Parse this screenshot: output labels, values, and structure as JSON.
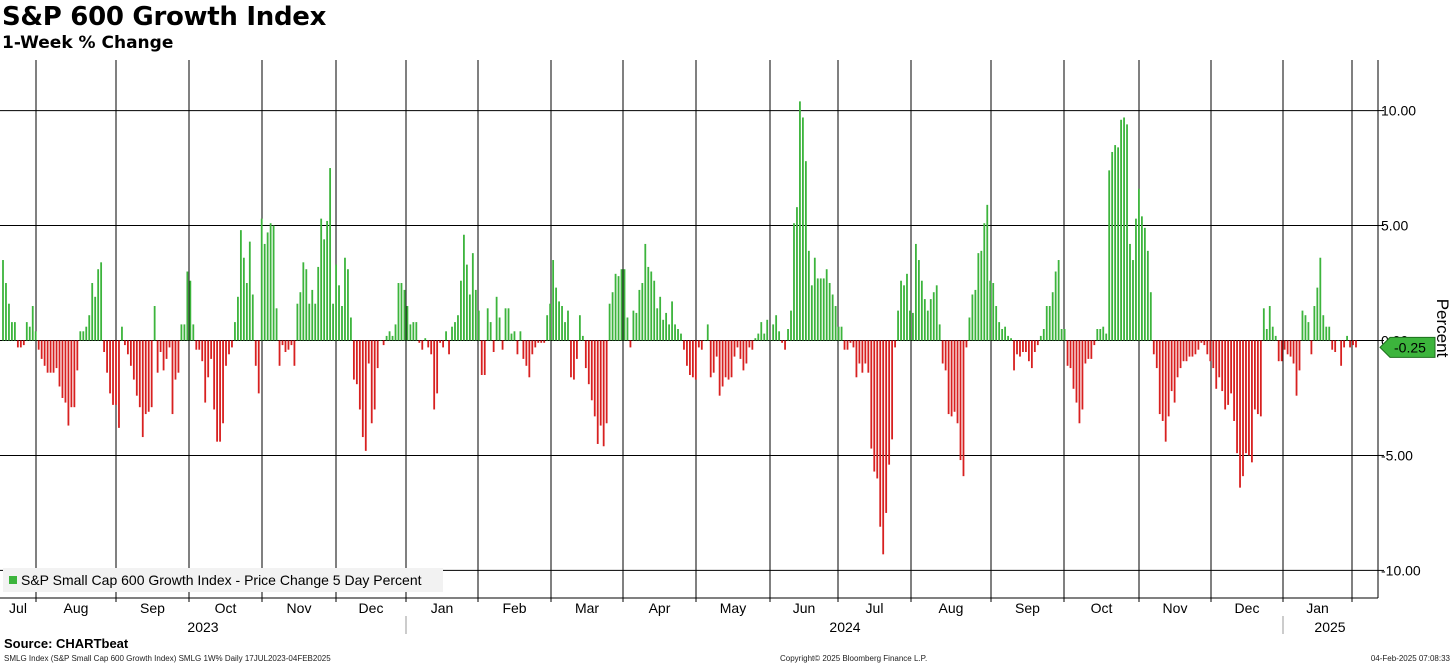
{
  "chart_data": {
    "type": "bar",
    "title": "S&P 600 Growth Index",
    "subtitle": "1-Week % Change",
    "ylabel": "Percent",
    "ylim": [
      -11.2,
      12.2
    ],
    "yticks": [
      10,
      5,
      0,
      -5,
      -10
    ],
    "ytick_labels": [
      "10.00",
      "5.00",
      "0.00",
      "-5.00",
      "-10.00"
    ],
    "last_value_label": "-0.25",
    "positive_color": "#3cb43c",
    "negative_color": "#d82020",
    "legend": "S&P Small Cap 600 Growth Index - Price Change 5 Day Percent",
    "x_month_labels": [
      "Jul",
      "Aug",
      "Sep",
      "Oct",
      "Nov",
      "Dec",
      "Jan",
      "Feb",
      "Mar",
      "Apr",
      "May",
      "Jun",
      "Jul",
      "Aug",
      "Sep",
      "Oct",
      "Nov",
      "Dec",
      "Jan"
    ],
    "x_year_labels": [
      "2023",
      "2024",
      "2025"
    ],
    "month_boundaries": [
      "Aug 2023",
      "Sep 2023",
      "Oct 2023",
      "Nov 2023",
      "Dec 2023",
      "Jan 2024",
      "Feb 2024",
      "Mar 2024",
      "Apr 2024",
      "May 2024",
      "Jun 2024",
      "Jul 2024",
      "Aug 2024",
      "Sep 2024",
      "Oct 2024",
      "Nov 2024",
      "Dec 2024",
      "Jan 2025",
      "Feb 2025"
    ],
    "date_range": "17JUL2023-04FEB2025",
    "values": [
      3.5,
      2.5,
      1.6,
      0.8,
      0.8,
      -0.3,
      -0.3,
      -0.2,
      0.8,
      0.6,
      1.5,
      0.4,
      -0.4,
      -0.8,
      -1.1,
      -1.4,
      -1.4,
      -1.4,
      -1.2,
      -2,
      -2.5,
      -2.7,
      -3.7,
      -2.9,
      -2.9,
      -1.3,
      0.4,
      0.4,
      0.6,
      1.1,
      2.5,
      1.9,
      3.1,
      3.4,
      -0.5,
      -1.4,
      -2.3,
      -2.8,
      -2.8,
      -3.8,
      0.6,
      -0.2,
      -0.6,
      -1.1,
      -1.7,
      -2.4,
      -2.9,
      -4.2,
      -3.2,
      -3.1,
      -2.9,
      1.5,
      -1.4,
      -0.5,
      -1.3,
      -0.8,
      -0.3,
      -3.2,
      -1.7,
      -1.4,
      0.7,
      0.7,
      3,
      2.6,
      0.7,
      -0.4,
      -0.4,
      -0.9,
      -2.7,
      -1.6,
      -0.8,
      -3,
      -4.4,
      -4.4,
      -3.6,
      -1.1,
      -0.6,
      -0.3,
      0.8,
      1.9,
      4.8,
      3.6,
      2.5,
      4.3,
      2,
      -1.1,
      -2.3,
      5.3,
      4.2,
      4.7,
      5.1,
      5,
      1.4,
      -1.1,
      -0.2,
      -0.5,
      -0.4,
      -0.2,
      -1.1,
      1.6,
      2.1,
      3.4,
      3.1,
      1.6,
      2.2,
      1.6,
      3.2,
      5.3,
      4.4,
      5.2,
      7.5,
      1.6,
      3.3,
      2.4,
      1.5,
      3.6,
      3.1,
      1,
      -1.7,
      -1.9,
      -3,
      -4.2,
      -4.8,
      -1,
      -3.6,
      -3,
      -1.2,
      0,
      -0.2,
      0.2,
      0.4,
      0.2,
      0.7,
      2.5,
      2.5,
      2.2,
      1.5,
      0.7,
      0.8,
      0.8,
      -0.1,
      -0.4,
      0.1,
      -0.3,
      -0.6,
      -3,
      -2.3,
      -0.1,
      -0.3,
      0.4,
      -0.6,
      0.6,
      0.8,
      1.1,
      2.6,
      4.6,
      3.3,
      2,
      3.8,
      2.2,
      1.3,
      -1.5,
      -1.5,
      1.4,
      0.8,
      -0.5,
      1.9,
      1,
      -0.4,
      1.4,
      1.4,
      0.3,
      0.4,
      -0.6,
      0.4,
      -0.8,
      -1.1,
      -1.6,
      -0.6,
      -0.3,
      -0.1,
      -0.1,
      -0.1,
      1.1,
      1.6,
      3.5,
      2.3,
      1.7,
      1.5,
      0.8,
      1.3,
      -1.6,
      -1.7,
      -0.8,
      1.1,
      0.2,
      -1.2,
      -1.9,
      -2.6,
      -3.3,
      -4.5,
      -3.7,
      -4.6,
      -3.6,
      1.6,
      2.1,
      2.9,
      2.8,
      3.1,
      3.1,
      1,
      -0.3,
      1.3,
      1.2,
      2.2,
      2.5,
      4.2,
      3.2,
      3,
      2.6,
      1.4,
      1.9,
      0.9,
      1.2,
      0.7,
      1.7,
      0.7,
      0.5,
      0.3,
      -0.4,
      -1.1,
      -1.5,
      -1.6,
      -1.7,
      -0.3,
      -0.4,
      0,
      0.7,
      -1.6,
      -1.4,
      -0.7,
      -2.4,
      -2,
      -1.6,
      -1.7,
      -1.6,
      -0.7,
      -0.3,
      -0.8,
      -1.3,
      -1,
      -0.3,
      -0.4,
      0.1,
      0.3,
      0.8,
      0.3,
      0.9,
      0,
      0.7,
      1.1,
      0.4,
      -0.1,
      -0.4,
      0.5,
      1.3,
      5.1,
      5.8,
      10.4,
      9.7,
      7.8,
      3.9,
      2.4,
      3.6,
      2.7,
      2.7,
      2.7,
      3.1,
      2.5,
      2,
      1.5,
      0.6,
      0.6,
      -0.4,
      -0.4,
      -0.1,
      -0.3,
      -1.6,
      -1,
      -1.4,
      -1,
      -1.4,
      -4.7,
      -5.7,
      -6,
      -8.1,
      -9.3,
      -7.5,
      -5.4,
      -4.3,
      -0.3,
      1.3,
      2.6,
      2.4,
      2.9,
      1.3,
      1.2,
      4.2,
      3.5,
      2.6,
      1.8,
      1.3,
      1.8,
      2.1,
      2.4,
      0.7,
      -1,
      -1.3,
      -3.2,
      -3.3,
      -3.1,
      -3.6,
      -5.2,
      -5.9,
      -0.3,
      1,
      2,
      2.2,
      3.8,
      3.9,
      5.1,
      5.9,
      2.6,
      2.5,
      1.5,
      0.8,
      0.5,
      0.6,
      0.2,
      0.1,
      -1.3,
      -0.6,
      -0.7,
      -0.5,
      -0.5,
      -0.9,
      -1.2,
      -0.5,
      -0.2,
      0.2,
      0.5,
      1.5,
      1.5,
      2.1,
      3,
      3.5,
      0.5,
      0.5,
      -1.1,
      -1.2,
      -2.1,
      -2.7,
      -3.6,
      -3,
      -1,
      -0.8,
      -0.8,
      -0.2,
      0.5,
      0.5,
      0.6,
      0.3,
      7.4,
      8.2,
      8.5,
      8.4,
      9.6,
      9.7,
      9.4,
      4.2,
      3.5,
      5.3,
      6.6,
      5.4,
      4.9,
      3.9,
      2.1,
      -0.6,
      -1.2,
      -3.2,
      -3.5,
      -4.4,
      -3.3,
      -2.2,
      -2.7,
      -1.6,
      -1.2,
      -0.9,
      -0.9,
      -0.7,
      -0.7,
      -0.6,
      -0.4,
      -0.1,
      -0.2,
      -0.6,
      -0.9,
      -1.2,
      -2.1,
      -1.6,
      -2.2,
      -3,
      -2.8,
      -2.3,
      -3.5,
      -4.9,
      -6.4,
      -5.9,
      -4.9,
      -5,
      -5.3,
      -3,
      -3.2,
      -3.3,
      1.4,
      0.5,
      1.5,
      0.6,
      0.2,
      -0.9,
      -0.9,
      -0.4,
      -0.6,
      -0.7,
      -1,
      -2.4,
      -1.3,
      1.3,
      1.1,
      0.8,
      -0.6,
      1.5,
      2.3,
      3.6,
      1.1,
      0.6,
      0.6,
      -0.4,
      -0.5,
      0,
      -1.1,
      -0.3,
      0.2,
      -0.3,
      -0.2,
      -0.3
    ],
    "x_axis": "daily, 17 Jul 2023 to 04 Feb 2025"
  },
  "source": "Source: CHARTbeat",
  "footer": {
    "left": "SMLG Index (S&P Small Cap 600 Growth Index) SMLG 1W%  Daily 17JUL2023-04FEB2025",
    "center": "Copyright© 2025 Bloomberg Finance L.P.",
    "right": "04-Feb-2025 07:08:33"
  }
}
